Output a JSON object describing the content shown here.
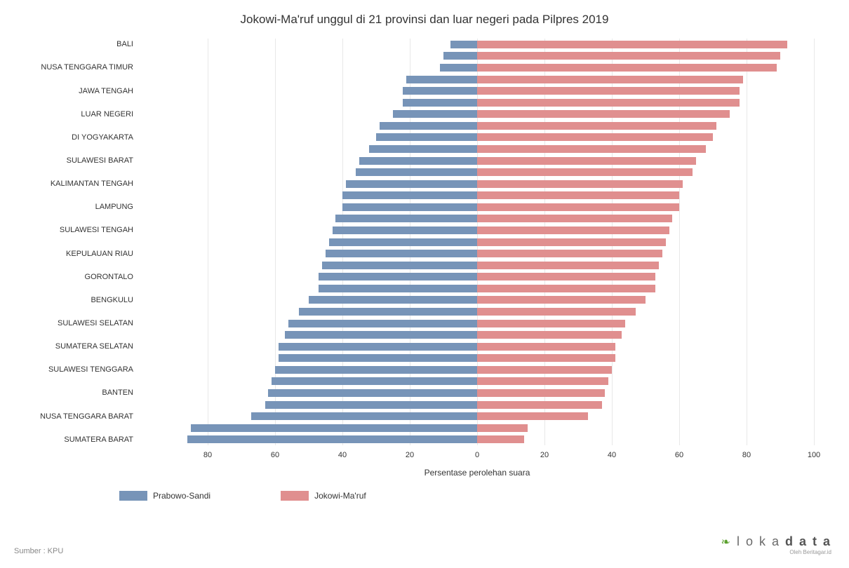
{
  "title": "Jokowi-Ma'ruf unggul di 21 provinsi dan luar negeri pada Pilpres 2019",
  "xlabel": "Persentase perolehan suara",
  "colors": {
    "prabowo": "#7794b8",
    "jokowi": "#e08f8f",
    "grid": "#e8e8e8",
    "text": "#333333"
  },
  "axis": {
    "min": -100,
    "max": 100,
    "ticks": [
      -80,
      -60,
      -40,
      -20,
      0,
      20,
      40,
      60,
      80,
      100
    ],
    "tick_labels": [
      "80",
      "60",
      "40",
      "20",
      "0",
      "20",
      "40",
      "60",
      "80",
      "100"
    ]
  },
  "series": [
    {
      "key": "prabowo",
      "label": "Prabowo-Sandi"
    },
    {
      "key": "jokowi",
      "label": "Jokowi-Ma'ruf"
    }
  ],
  "rows": [
    {
      "label": "BALI",
      "prabowo": 8,
      "jokowi": 92
    },
    {
      "label": "",
      "prabowo": 10,
      "jokowi": 90
    },
    {
      "label": "NUSA TENGGARA TIMUR",
      "prabowo": 11,
      "jokowi": 89
    },
    {
      "label": "",
      "prabowo": 21,
      "jokowi": 79
    },
    {
      "label": "JAWA TENGAH",
      "prabowo": 22,
      "jokowi": 78
    },
    {
      "label": "",
      "prabowo": 22,
      "jokowi": 78
    },
    {
      "label": "LUAR NEGERI",
      "prabowo": 25,
      "jokowi": 75
    },
    {
      "label": "",
      "prabowo": 29,
      "jokowi": 71
    },
    {
      "label": "DI YOGYAKARTA",
      "prabowo": 30,
      "jokowi": 70
    },
    {
      "label": "",
      "prabowo": 32,
      "jokowi": 68
    },
    {
      "label": "SULAWESI BARAT",
      "prabowo": 35,
      "jokowi": 65
    },
    {
      "label": "",
      "prabowo": 36,
      "jokowi": 64
    },
    {
      "label": "KALIMANTAN TENGAH",
      "prabowo": 39,
      "jokowi": 61
    },
    {
      "label": "",
      "prabowo": 40,
      "jokowi": 60
    },
    {
      "label": "LAMPUNG",
      "prabowo": 40,
      "jokowi": 60
    },
    {
      "label": "",
      "prabowo": 42,
      "jokowi": 58
    },
    {
      "label": "SULAWESI TENGAH",
      "prabowo": 43,
      "jokowi": 57
    },
    {
      "label": "",
      "prabowo": 44,
      "jokowi": 56
    },
    {
      "label": "KEPULAUAN RIAU",
      "prabowo": 45,
      "jokowi": 55
    },
    {
      "label": "",
      "prabowo": 46,
      "jokowi": 54
    },
    {
      "label": "GORONTALO",
      "prabowo": 47,
      "jokowi": 53
    },
    {
      "label": "",
      "prabowo": 47,
      "jokowi": 53
    },
    {
      "label": "BENGKULU",
      "prabowo": 50,
      "jokowi": 50
    },
    {
      "label": "",
      "prabowo": 53,
      "jokowi": 47
    },
    {
      "label": "SULAWESI SELATAN",
      "prabowo": 56,
      "jokowi": 44
    },
    {
      "label": "",
      "prabowo": 57,
      "jokowi": 43
    },
    {
      "label": "SUMATERA SELATAN",
      "prabowo": 59,
      "jokowi": 41
    },
    {
      "label": "",
      "prabowo": 59,
      "jokowi": 41
    },
    {
      "label": "SULAWESI TENGGARA",
      "prabowo": 60,
      "jokowi": 40
    },
    {
      "label": "",
      "prabowo": 61,
      "jokowi": 39
    },
    {
      "label": "BANTEN",
      "prabowo": 62,
      "jokowi": 38
    },
    {
      "label": "",
      "prabowo": 63,
      "jokowi": 37
    },
    {
      "label": "NUSA TENGGARA BARAT",
      "prabowo": 67,
      "jokowi": 33
    },
    {
      "label": "",
      "prabowo": 85,
      "jokowi": 15
    },
    {
      "label": "SUMATERA BARAT",
      "prabowo": 86,
      "jokowi": 14
    }
  ],
  "footer": "Sumber : KPU",
  "logo": {
    "brand": "lokadata",
    "sub": "Oleh Beritagar.id"
  }
}
